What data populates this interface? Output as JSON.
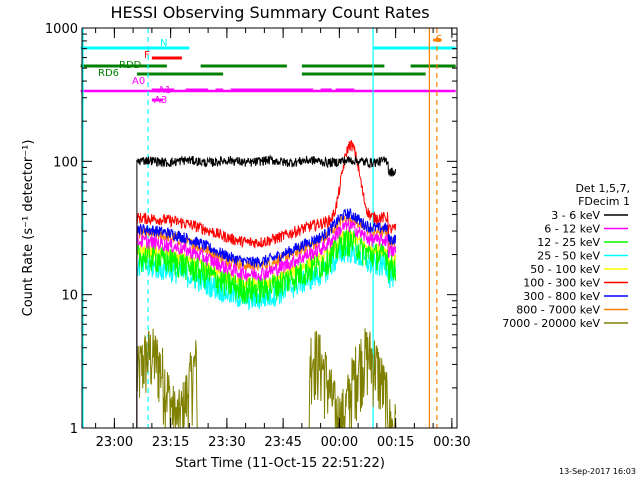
{
  "chart_data": {
    "type": "line",
    "title": "HESSI Observing Summary Count Rates",
    "xlabel": "Start Time (11-Oct-15 22:51:22)",
    "ylabel": "Count Rate (s⁻¹ detector⁻¹)",
    "yscale": "log",
    "ylim": [
      1,
      1000
    ],
    "xlim": [
      "22:51:22",
      "00:31:22"
    ],
    "x_ticks": [
      "23:00",
      "23:15",
      "23:30",
      "23:45",
      "00:00",
      "00:15",
      "00:30"
    ],
    "y_ticks": [
      "1",
      "10",
      "100",
      "1000"
    ],
    "legend": {
      "position": "right",
      "header": [
        "Det 1,5,7,",
        "FDecim 1"
      ]
    },
    "series": [
      {
        "name": "3 - 6 keV",
        "color": "#000000",
        "profile": "flat",
        "base": 100,
        "start": "23:06",
        "end": "00:15",
        "noise": 0.04
      },
      {
        "name": "6 - 12 keV",
        "color": "#ff00ff",
        "profile": "dip",
        "base": 26,
        "start": "23:06",
        "end": "00:15",
        "noise": 0.06
      },
      {
        "name": "12 - 25 keV",
        "color": "#00ff00",
        "profile": "dip",
        "base": 20,
        "start": "23:06",
        "end": "00:15",
        "noise": 0.12
      },
      {
        "name": "25 - 50 keV",
        "color": "#00ffff",
        "profile": "dip",
        "base": 17,
        "start": "23:06",
        "end": "00:15",
        "noise": 0.1
      },
      {
        "name": "50 - 100 keV",
        "color": "#ffff00",
        "profile": "dip",
        "base": 22,
        "start": "23:06",
        "end": "00:15",
        "noise": 0.06
      },
      {
        "name": "100 - 300 keV",
        "color": "#ff0000",
        "profile": "flare",
        "base": 38,
        "start": "23:06",
        "end": "00:15",
        "noise": 0.05
      },
      {
        "name": "300 - 800 keV",
        "color": "#0000ff",
        "profile": "dip",
        "base": 32,
        "start": "23:06",
        "end": "00:15",
        "noise": 0.05
      },
      {
        "name": "800 - 7000 keV",
        "color": "#ff8000",
        "profile": "dip",
        "base": 30,
        "start": "23:06",
        "end": "00:15",
        "noise": 0.05
      },
      {
        "name": "7000 - 20000 keV",
        "color": "#808000",
        "profile": "low",
        "base": 3,
        "start": "23:06",
        "end": "00:15",
        "noise": 0.3
      }
    ],
    "vertical_lines": [
      {
        "time": "22:51:22",
        "color": "#00ffff",
        "style": "solid"
      },
      {
        "time": "23:09",
        "color": "#00ffff",
        "style": "dashed"
      },
      {
        "time": "00:09",
        "color": "#00ffff",
        "style": "solid"
      },
      {
        "time": "00:24",
        "color": "#ff8000",
        "style": "solid"
      },
      {
        "time": "00:26",
        "color": "#ff8000",
        "style": "dashed"
      }
    ],
    "flag_bars": [
      {
        "label": "N",
        "color": "#00ffff",
        "segments": [
          [
            "22:51",
            "23:09"
          ],
          [
            "23:09",
            "23:20"
          ],
          [
            "00:09",
            "00:31"
          ]
        ]
      },
      {
        "label": "F",
        "color": "#ff0000",
        "segments": [
          [
            "23:10",
            "23:18"
          ]
        ]
      },
      {
        "label": "S",
        "color": "#ff8000",
        "segments": [
          [
            "00:25",
            "00:27"
          ]
        ]
      },
      {
        "label": "RDD",
        "color": "#008000",
        "segments": [
          [
            "22:51",
            "23:14"
          ],
          [
            "23:23",
            "23:46"
          ],
          [
            "23:50",
            "00:12"
          ],
          [
            "00:19",
            "00:31"
          ]
        ]
      },
      {
        "label": "RD6",
        "color": "#008000",
        "segments": [
          [
            "23:06",
            "23:29"
          ],
          [
            "23:50",
            "00:23"
          ]
        ]
      },
      {
        "label": "A0",
        "color": "#ff00ff",
        "segments": [
          [
            "22:51",
            "00:31"
          ]
        ]
      },
      {
        "label": "A1",
        "color": "#ff00ff",
        "segments": [
          [
            "23:10",
            "23:16"
          ],
          [
            "23:19",
            "23:25"
          ],
          [
            "23:27",
            "23:29"
          ],
          [
            "23:31",
            "23:53"
          ],
          [
            "23:55",
            "23:58"
          ],
          [
            "23:59",
            "00:04"
          ]
        ]
      },
      {
        "label": "A3",
        "color": "#ff00ff",
        "segments": [
          [
            "23:10",
            "23:13"
          ]
        ]
      }
    ]
  },
  "footer": {
    "timestamp": "13-Sep-2017 16:03"
  }
}
